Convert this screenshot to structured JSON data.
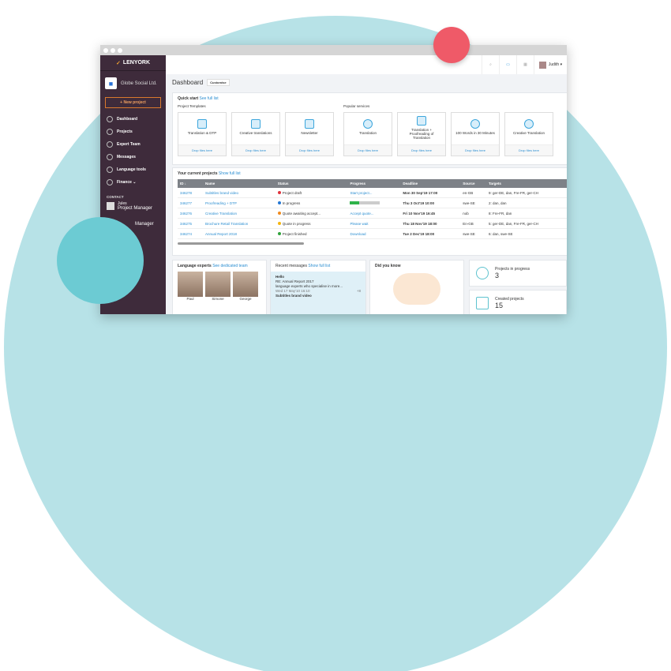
{
  "brand": {
    "name": "LENYORK",
    "org": "Globe Social Ltd."
  },
  "sidebar": {
    "new_project": "+ New project",
    "items": [
      {
        "label": "Dashboard"
      },
      {
        "label": "Projects"
      },
      {
        "label": "Expert Team"
      },
      {
        "label": "Messages"
      },
      {
        "label": "Language tools"
      },
      {
        "label": "Finance ⌄"
      }
    ],
    "contact_heading": "CONTACT",
    "contacts": [
      {
        "name": "Jules",
        "role": "Project Manager"
      },
      {
        "role": "Manager"
      }
    ]
  },
  "topbar": {
    "user": "Judith ▾"
  },
  "dashboard": {
    "title": "Dashboard",
    "customise": "Customise",
    "quick_start": "Quick start",
    "see_full_list": "See full list",
    "templates_heading": "Project Templates",
    "popular_heading": "Popular services",
    "drop": "Drop files here",
    "templates": [
      "Translation & DTP",
      "Creative translations",
      "Newsletter"
    ],
    "services": [
      "Translation",
      "Translation + Proofreading of Translation",
      "100 Words in 30 Minutes",
      "Creative Translation"
    ]
  },
  "projects": {
    "heading": "Your current projects",
    "show_full_list": "Show full list",
    "columns": [
      "ID ↓",
      "Name",
      "Status",
      "Progress",
      "Deadline",
      "Source",
      "Targets"
    ],
    "rows": [
      {
        "id": "346278",
        "name": "Subtitles brand video",
        "status": "Project draft",
        "status_color": "#e0323c",
        "progress": "Start project...",
        "deadline": "Mon 30 Sep'19 17:00",
        "source": "en-GB",
        "targets": "9: ger-DE, dan, Fre-FR, ger-CH"
      },
      {
        "id": "346277",
        "name": "Proofreading + DTP",
        "status": "In progress",
        "status_color": "#2477d4",
        "progress_fraction": 0.3,
        "deadline": "Thu 3 Oct'19 10:00",
        "source": "swe-SE",
        "targets": "2: dan, dan"
      },
      {
        "id": "346276",
        "name": "Creative Translation",
        "status": "Quote awaiting accept...",
        "status_color": "#f08a1c",
        "progress": "Accept quote...",
        "deadline": "Fri 10 Nov'19 16:45",
        "source": "nob",
        "targets": "8: Fre-FR, dan"
      },
      {
        "id": "346275",
        "name": "Brochure Retail Translation",
        "status": "Quote in progress",
        "status_color": "#f5b50f",
        "progress": "Please wait",
        "deadline": "Thu 18 Nov'19 18:00",
        "source": "En-GB",
        "targets": "5: ger-DE, dan, Fre-FR, ger-CH"
      },
      {
        "id": "346274",
        "name": "Annual Report 2018",
        "status": "Project finished",
        "status_color": "#2fa23a",
        "progress": "Download",
        "deadline": "Tue 2 Dec'19 18:00",
        "source": "swe-SE",
        "targets": "6: dan, swe-SE"
      }
    ]
  },
  "experts": {
    "heading": "Language experts",
    "link": "See dedicated team",
    "people": [
      "Paul",
      "Simone",
      "George"
    ]
  },
  "messages": {
    "heading": "Recent messages",
    "link": "Show full list",
    "items": [
      {
        "title": "Hello",
        "subject": "RE: Annual Report 2017",
        "preview": "language experts who specialise in more...",
        "time": "Wed 17 May'10 16:10",
        "extra": "+8"
      },
      {
        "title": "Subtitles brand video"
      }
    ]
  },
  "did_you_know": {
    "heading": "Did you know"
  },
  "stats": [
    {
      "label": "Projects in progress",
      "value": "3"
    },
    {
      "label": "Created projects",
      "value": "15"
    }
  ]
}
